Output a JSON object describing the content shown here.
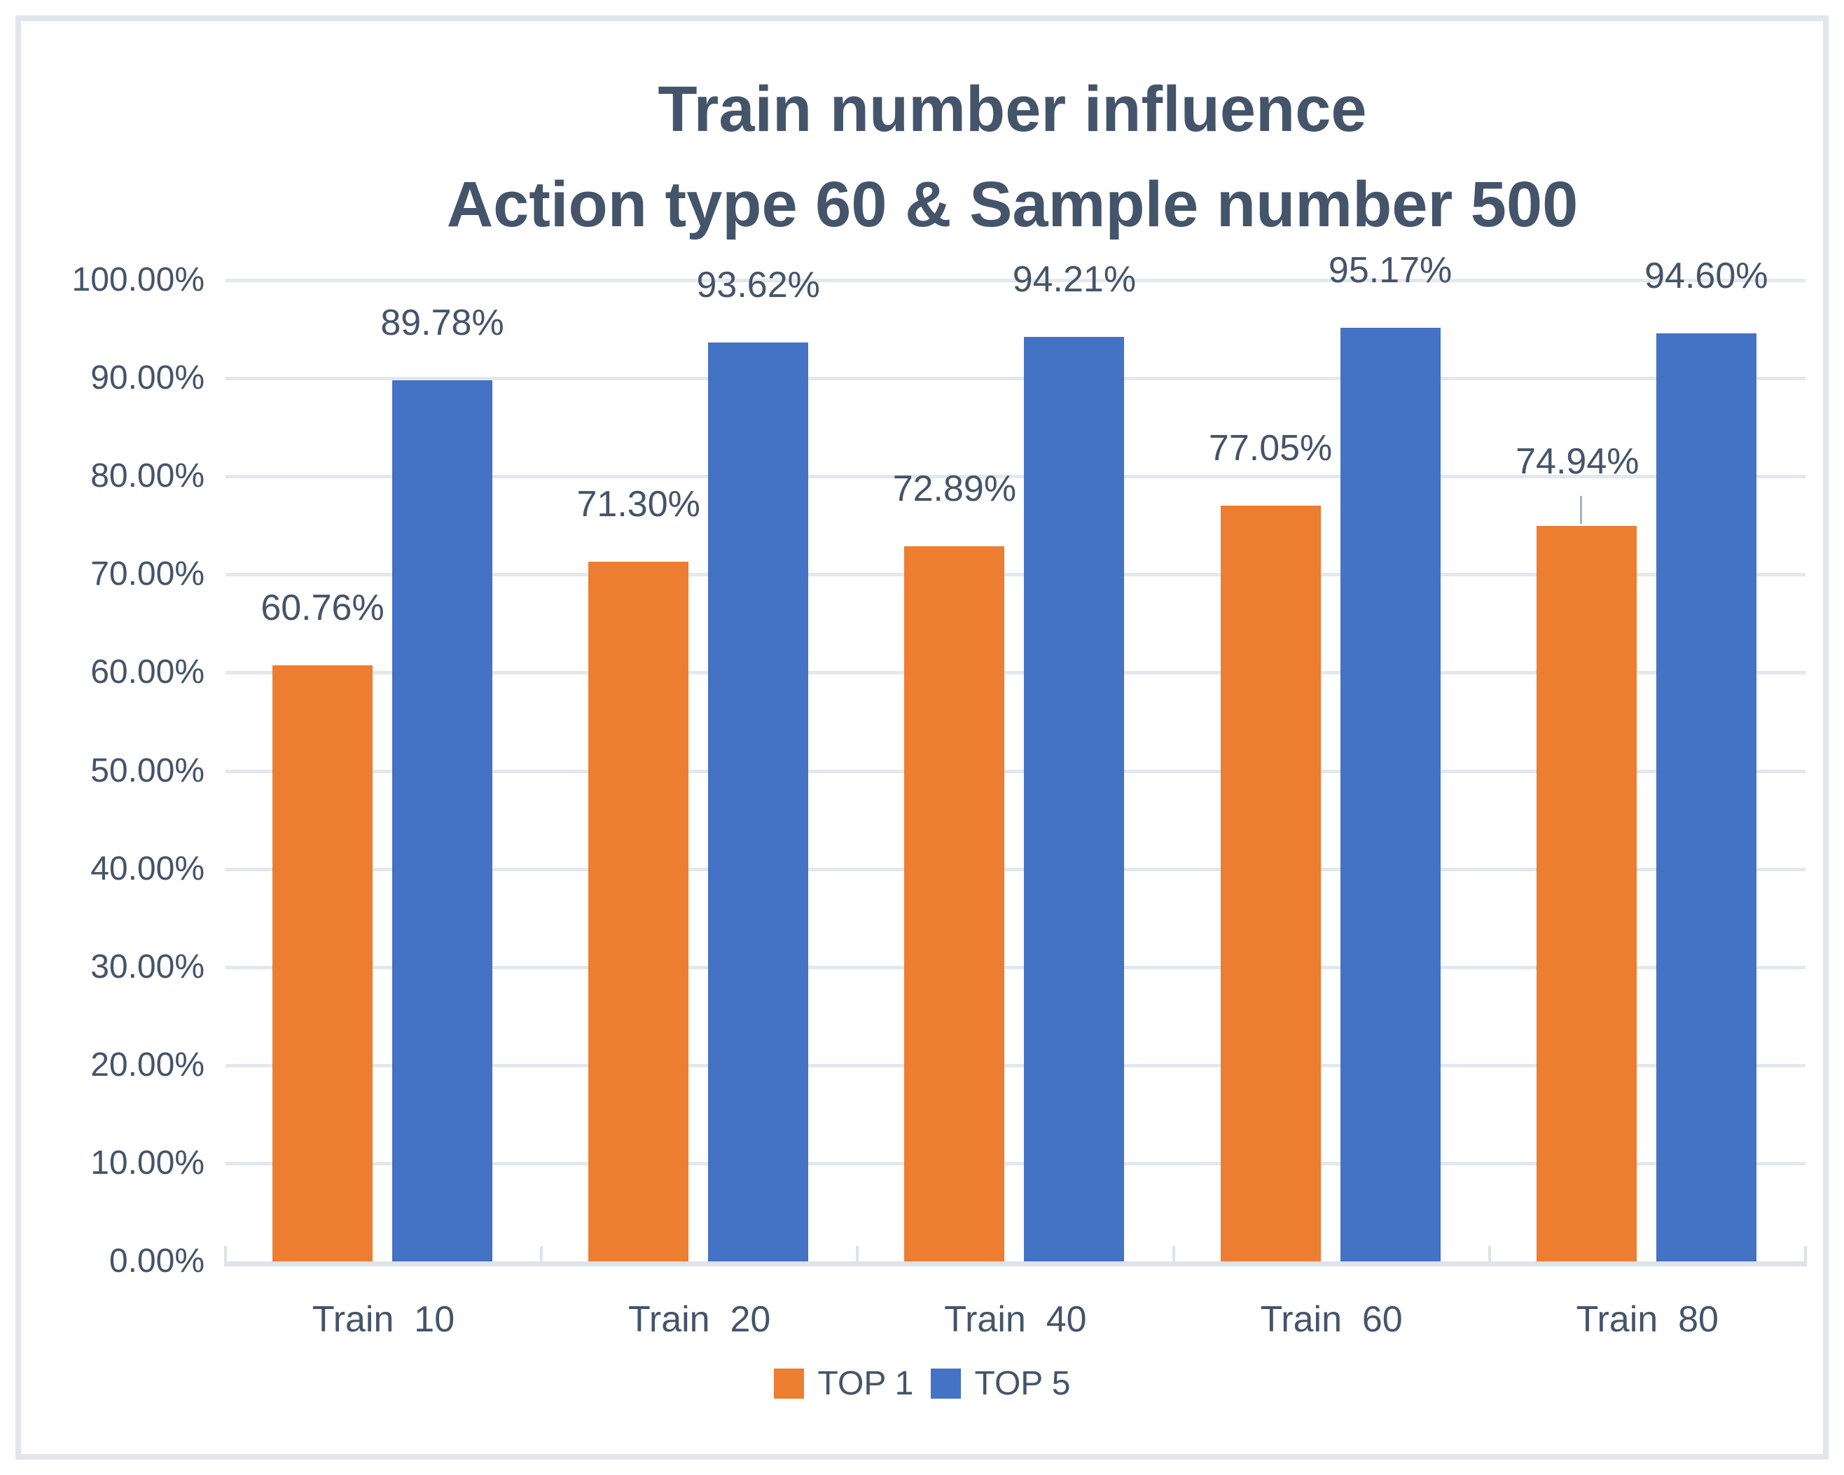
{
  "title": {
    "line1": "Train number influence",
    "line2": "Action type 60 & Sample number 500"
  },
  "chart_data": {
    "type": "bar",
    "categories": [
      "Train  10",
      "Train  20",
      "Train  40",
      "Train  60",
      "Train  80"
    ],
    "series": [
      {
        "name": "TOP 1",
        "color": "#ED7D31",
        "values": [
          60.76,
          71.3,
          72.89,
          77.05,
          74.94
        ],
        "labels": [
          "60.76%",
          "71.30%",
          "72.89%",
          "77.05%",
          "74.94%"
        ]
      },
      {
        "name": "TOP 5",
        "color": "#4472C4",
        "values": [
          89.78,
          93.62,
          94.21,
          95.17,
          94.6
        ],
        "labels": [
          "89.78%",
          "93.62%",
          "94.21%",
          "95.17%",
          "94.60%"
        ]
      }
    ],
    "title": "Train number influence Action type 60 & Sample number 500",
    "xlabel": "",
    "ylabel": "",
    "ylim": [
      0,
      100
    ],
    "ytick_step": 10,
    "ytick_labels": [
      "0.00%",
      "10.00%",
      "20.00%",
      "30.00%",
      "40.00%",
      "50.00%",
      "60.00%",
      "70.00%",
      "80.00%",
      "90.00%",
      "100.00%"
    ],
    "grid": true,
    "legend_position": "bottom",
    "annotations": {
      "leader_line": {
        "series_index": 0,
        "category_index": 4
      }
    }
  },
  "legend": {
    "items": [
      {
        "label": "TOP 1",
        "color": "#ED7D31"
      },
      {
        "label": "TOP 5",
        "color": "#4472C4"
      }
    ]
  },
  "colors": {
    "title_text": "#44546A",
    "label_text": "#44546A",
    "gridline": "#E3E7EE",
    "axis": "#DEE2EA",
    "frame_border": "#E2E6EC",
    "top1": "#ED7D31",
    "top5": "#4472C4"
  }
}
